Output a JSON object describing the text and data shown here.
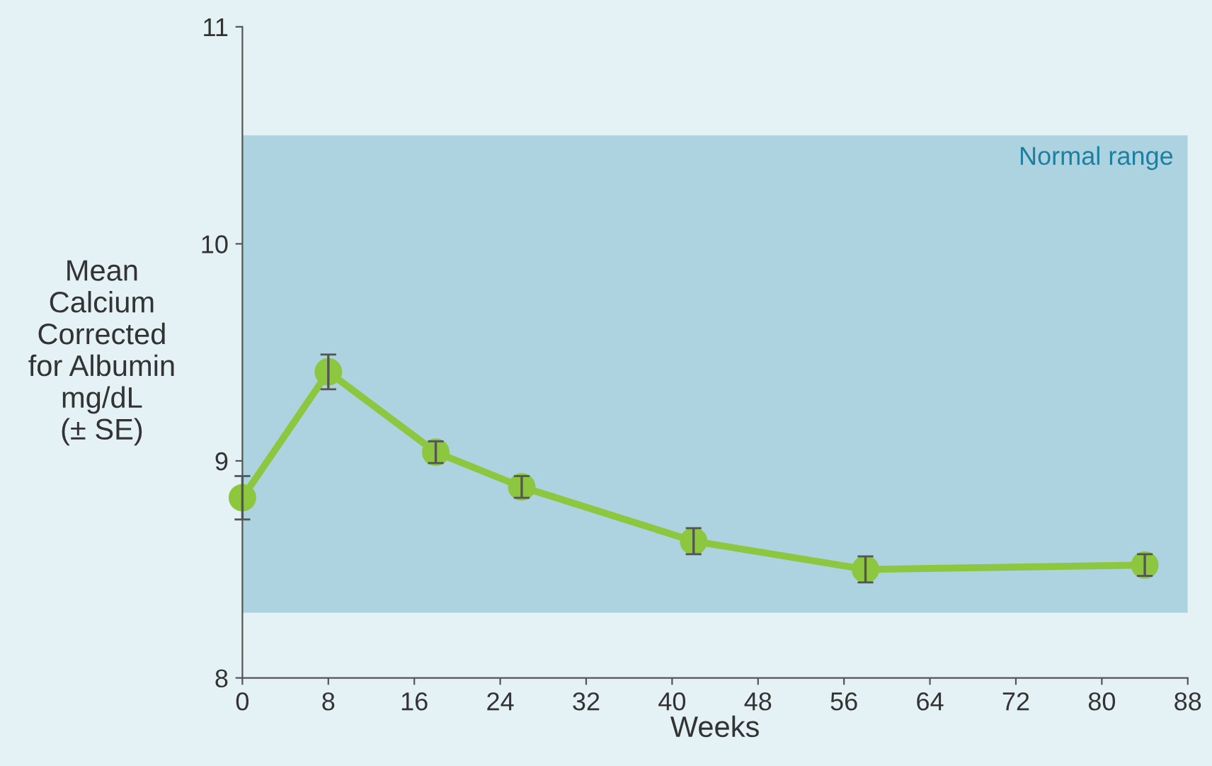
{
  "chart_data": {
    "type": "line",
    "xlabel": "Weeks",
    "ylabel": "Mean\nCalcium\nCorrected\nfor Albumin\nmg/dL\n(± SE)",
    "x": [
      0,
      8,
      18,
      26,
      42,
      58,
      84
    ],
    "series": [
      {
        "color": "#8dc63f",
        "values": [
          8.83,
          9.41,
          9.04,
          8.88,
          8.63,
          8.5,
          8.52
        ],
        "errors": [
          0.1,
          0.08,
          0.05,
          0.05,
          0.06,
          0.06,
          0.05
        ]
      }
    ],
    "xlim": [
      0,
      88
    ],
    "xticks": [
      0,
      8,
      16,
      24,
      32,
      40,
      48,
      56,
      64,
      72,
      80,
      88
    ],
    "ylim": [
      8,
      11
    ],
    "yticks": [
      8,
      9,
      10,
      11
    ],
    "bands": [
      {
        "axis": "y",
        "from": 8.3,
        "to": 10.5,
        "label": "Normal range",
        "color": "#acd3df"
      }
    ],
    "marker": "circle",
    "line_style": "solid",
    "grid": false
  }
}
